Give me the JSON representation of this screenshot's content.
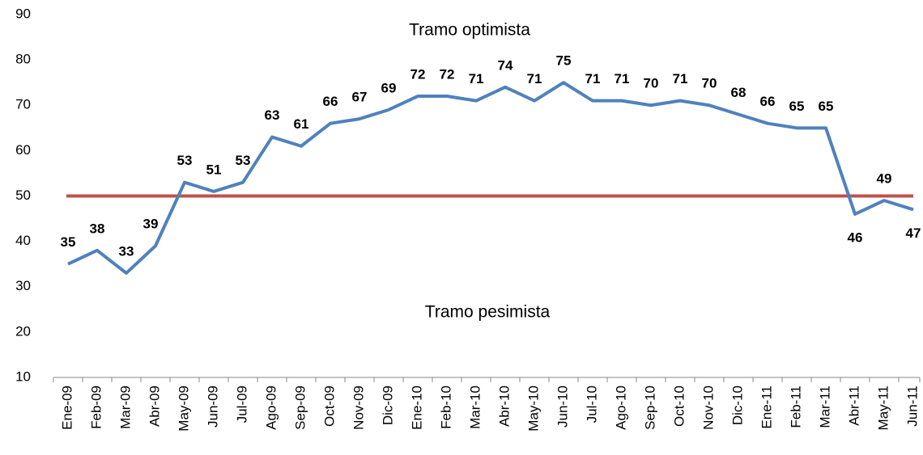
{
  "chart_data": {
    "type": "line",
    "categories": [
      "Ene-09",
      "Feb-09",
      "Mar-09",
      "Abr-09",
      "May-09",
      "Jun-09",
      "Jul-09",
      "Ago-09",
      "Sep-09",
      "Oct-09",
      "Nov-09",
      "Dic-09",
      "Ene-10",
      "Feb-10",
      "Mar-10",
      "Abr-10",
      "May-10",
      "Jun-10",
      "Jul-10",
      "Ago-10",
      "Sep-10",
      "Oct-10",
      "Nov-10",
      "Dic-10",
      "Ene-11",
      "Feb-11",
      "Mar-11",
      "Abr-11",
      "May-11",
      "Jun-11"
    ],
    "values": [
      35,
      38,
      33,
      39,
      53,
      51,
      53,
      63,
      61,
      66,
      67,
      69,
      72,
      72,
      71,
      74,
      71,
      75,
      71,
      71,
      70,
      71,
      70,
      68,
      66,
      65,
      65,
      46,
      49,
      47
    ],
    "color": "#4f81bd",
    "reference_line": {
      "value": 50,
      "color": "#c0504d"
    },
    "annotations": [
      "Tramo optimista",
      "Tramo pesimista"
    ],
    "ylim": [
      10,
      90
    ],
    "yticks": [
      10,
      20,
      30,
      40,
      50,
      60,
      70,
      80,
      90
    ],
    "grid": false
  }
}
